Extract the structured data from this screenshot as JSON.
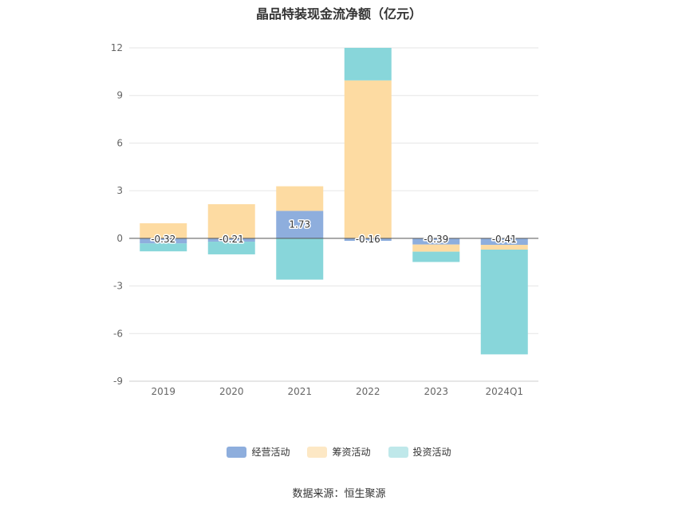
{
  "chart_data": {
    "type": "bar",
    "stacked": true,
    "title": "晶品特装现金流净额（亿元）",
    "categories": [
      "2019",
      "2020",
      "2021",
      "2022",
      "2023",
      "2024Q1"
    ],
    "series": [
      {
        "name": "经营活动",
        "color": "#8eaedd",
        "values": [
          -0.32,
          -0.21,
          1.73,
          -0.16,
          -0.39,
          -0.41
        ]
      },
      {
        "name": "筹资活动",
        "color": "#fddba2",
        "values": [
          0.95,
          2.15,
          1.55,
          9.95,
          -0.45,
          -0.3
        ]
      },
      {
        "name": "投资活动",
        "color": "#88d6da",
        "values": [
          -0.5,
          -0.8,
          -2.6,
          2.05,
          -0.65,
          -6.6
        ]
      }
    ],
    "data_labels": [
      "-0.32",
      "-0.21",
      "1.73",
      "-0.16",
      "-0.39",
      "-0.41"
    ],
    "ylim": [
      -9,
      12
    ],
    "yticks": [
      "12",
      "9",
      "6",
      "3",
      "0",
      "-3",
      "-6",
      "-9"
    ],
    "ytick_values": [
      12,
      9,
      6,
      3,
      0,
      -3,
      -6,
      -9
    ],
    "grid": true,
    "legend": "bottom"
  },
  "source": "数据来源：恒生聚源"
}
